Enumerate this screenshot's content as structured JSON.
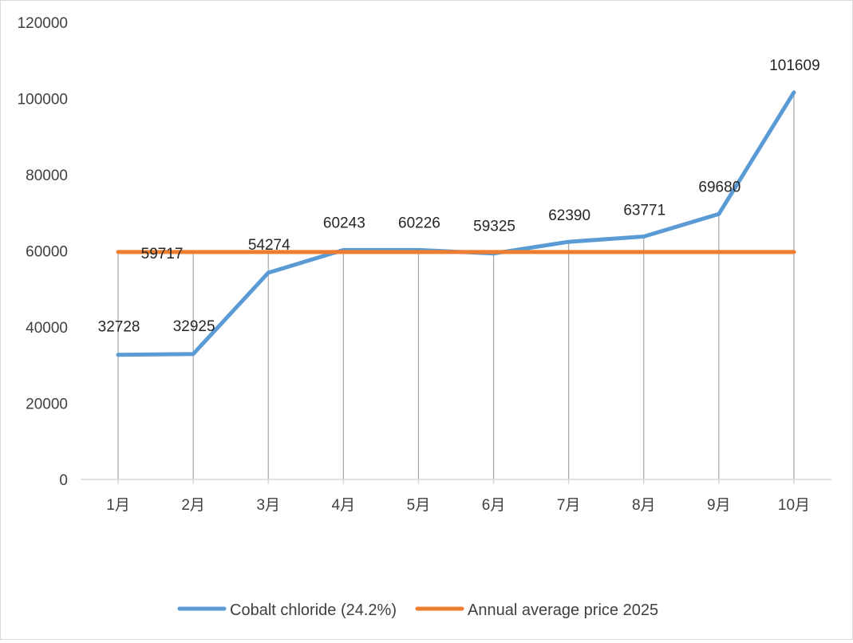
{
  "chart_data": {
    "type": "line",
    "title": "",
    "xlabel": "",
    "ylabel": "",
    "categories": [
      "1月",
      "2月",
      "3月",
      "4月",
      "5月",
      "6月",
      "7月",
      "8月",
      "9月",
      "10月"
    ],
    "ylim": [
      0,
      120000
    ],
    "yticks": [
      0,
      20000,
      40000,
      60000,
      80000,
      100000,
      120000
    ],
    "grid": "vertical drop lines",
    "legend_position": "bottom",
    "series": [
      {
        "name": "Cobalt chloride (24.2%)",
        "color": "#5B9BD5",
        "values": [
          32728,
          32925,
          54274,
          60243,
          60226,
          59325,
          62390,
          63771,
          69680,
          101609
        ],
        "data_labels": [
          "32728",
          "32925",
          "54274",
          "60243",
          "60226",
          "59325",
          "62390",
          "63771",
          "69680",
          "101609"
        ]
      },
      {
        "name": "Annual average price 2025",
        "color": "#ED7D31",
        "values": [
          59717,
          59717,
          59717,
          59717,
          59717,
          59717,
          59717,
          59717,
          59717,
          59717
        ],
        "data_labels": [
          "59717"
        ]
      }
    ]
  }
}
